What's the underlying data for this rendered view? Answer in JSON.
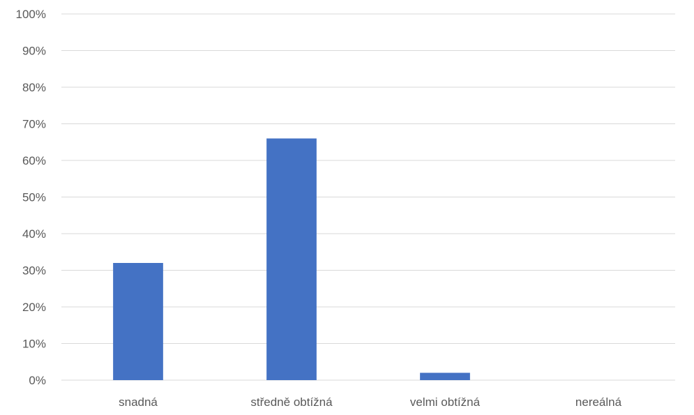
{
  "chart_data": {
    "type": "bar",
    "categories": [
      "snadná",
      "středně obtížná",
      "velmi obtížná",
      "nereálná"
    ],
    "series": [
      {
        "values": [
          32,
          66,
          2,
          0
        ]
      }
    ],
    "value_unit": "%",
    "ylim": [
      0,
      100
    ],
    "ytick_step": 10,
    "ytick_labels": [
      "0%",
      "10%",
      "20%",
      "30%",
      "40%",
      "50%",
      "60%",
      "70%",
      "80%",
      "90%",
      "100%"
    ],
    "grid": true,
    "legend": "none",
    "colors": {
      "bar": "#4472C4",
      "gridline": "#D9D9D9",
      "axis_text": "#595959"
    }
  }
}
